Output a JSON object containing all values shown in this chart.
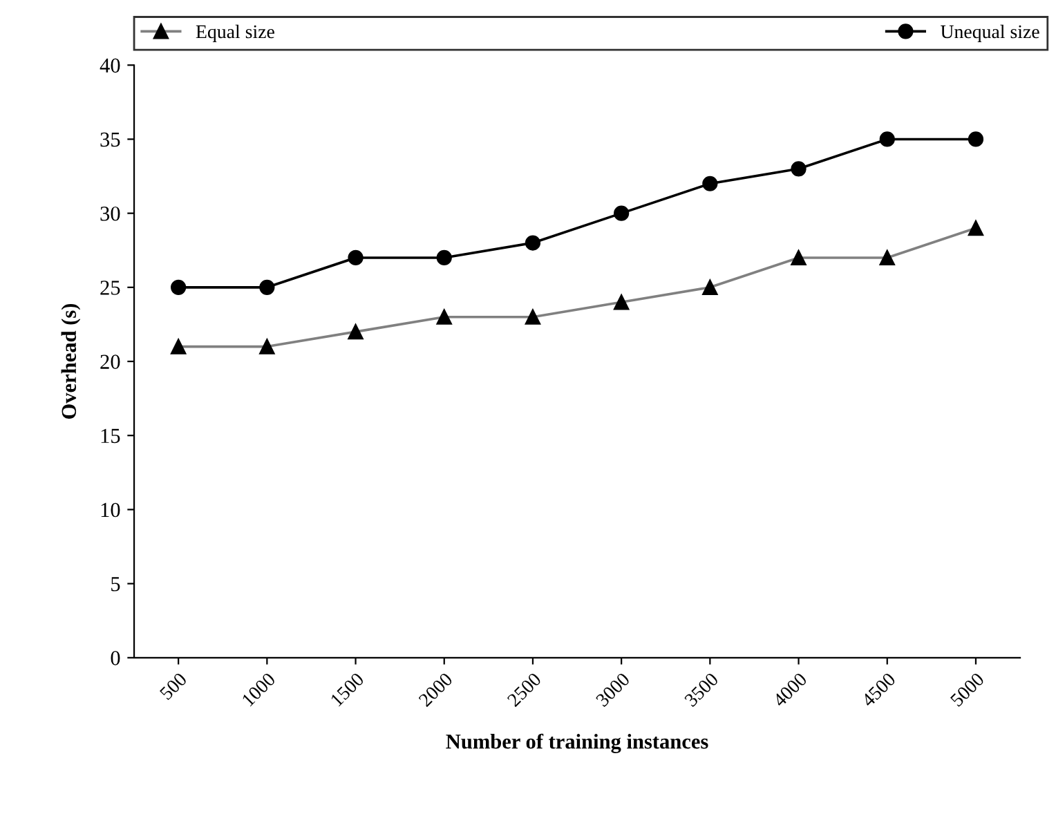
{
  "chart_data": {
    "type": "line",
    "xlabel": "Number of training instances",
    "ylabel": "Overhead (s)",
    "categories": [
      "500",
      "1000",
      "1500",
      "2000",
      "2500",
      "3000",
      "3500",
      "4000",
      "4500",
      "5000"
    ],
    "series": [
      {
        "name": "Equal size",
        "color": "#808080",
        "marker": "triangle",
        "values": [
          21,
          21,
          22,
          23,
          23,
          24,
          25,
          27,
          27,
          29
        ]
      },
      {
        "name": "Unequal size",
        "color": "#000000",
        "marker": "circle",
        "values": [
          25,
          25,
          27,
          27,
          28,
          30,
          32,
          33,
          35,
          35
        ]
      }
    ],
    "ylim": [
      0,
      40
    ],
    "yticks": [
      0,
      5,
      10,
      15,
      20,
      25,
      30,
      35,
      40
    ],
    "grid": false,
    "legend": "top"
  }
}
